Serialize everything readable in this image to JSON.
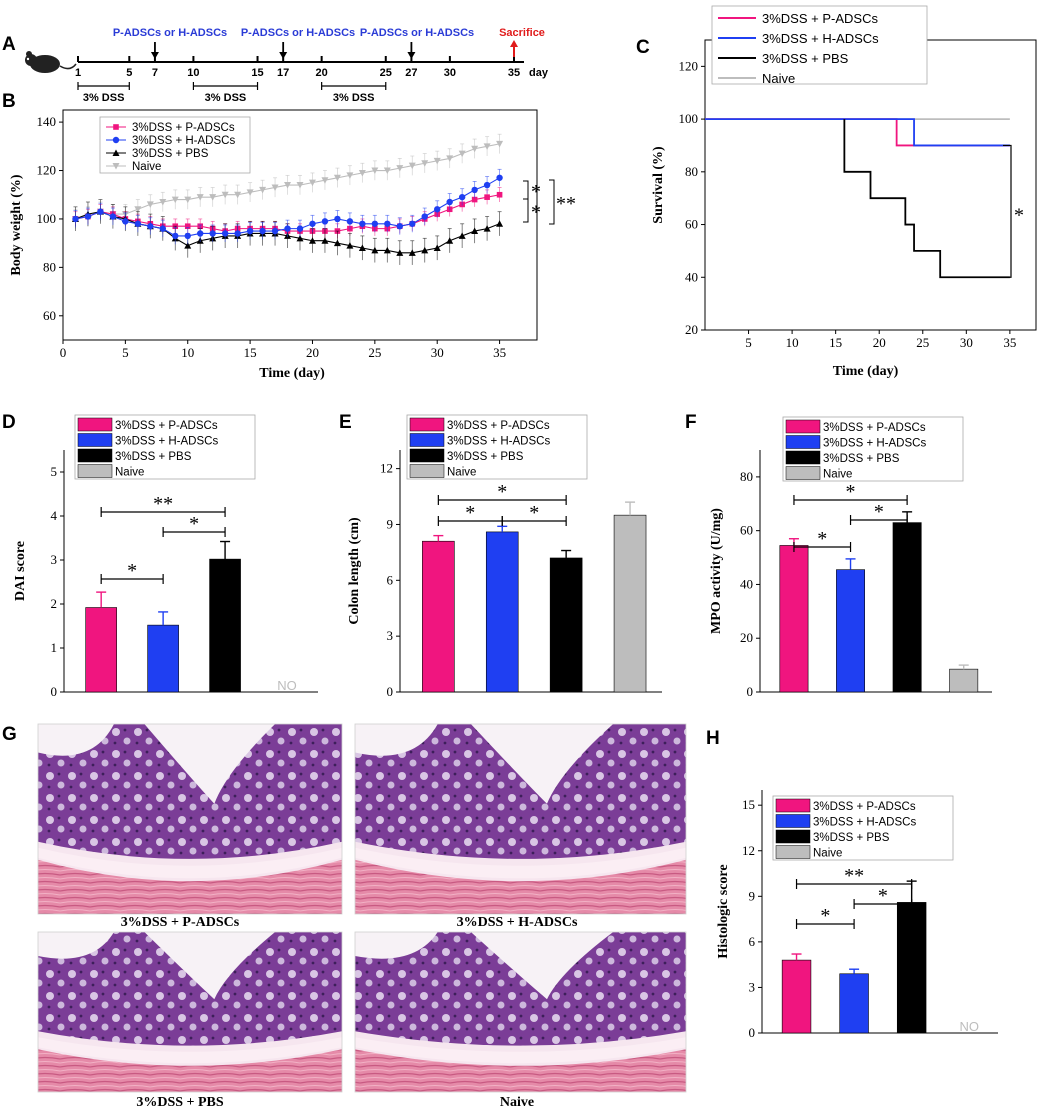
{
  "colors": {
    "pink": "#f0157f",
    "blue": "#1f3ff2",
    "black": "#000000",
    "gray": "#bdbdbd",
    "red": "#e01b1b",
    "text_blue": "#2a3bd6"
  },
  "panel_labels": {
    "A": "A",
    "B": "B",
    "C": "C",
    "D": "D",
    "E": "E",
    "F": "F",
    "G": "G",
    "H": "H"
  },
  "series_names": [
    "3%DSS + P-ADSCs",
    "3%DSS + H-ADSCs",
    "3%DSS + PBS",
    "Naive"
  ],
  "timeline": {
    "treatment_label": "P-ADSCs or H-ADSCs",
    "sacrifice_label": "Sacrifice",
    "dss_label": "3% DSS",
    "day_label": "day",
    "days": [
      "1",
      "5",
      "7",
      "10",
      "15",
      "17",
      "20",
      "25",
      "27",
      "30",
      "35"
    ]
  },
  "chart_data": [
    {
      "panel": "B",
      "type": "line",
      "title": "",
      "xlabel": "Time (day)",
      "ylabel": "Body weight (%)",
      "xlim": [
        0,
        38
      ],
      "ylim": [
        50,
        145
      ],
      "xticks": [
        "0",
        "5",
        "10",
        "15",
        "20",
        "25",
        "30",
        "35"
      ],
      "yticks": [
        "60",
        "80",
        "100",
        "120",
        "140"
      ],
      "x": [
        1,
        2,
        3,
        4,
        5,
        6,
        7,
        8,
        9,
        10,
        11,
        12,
        13,
        14,
        15,
        16,
        17,
        18,
        19,
        20,
        21,
        22,
        23,
        24,
        25,
        26,
        27,
        28,
        29,
        30,
        31,
        32,
        33,
        34,
        35
      ],
      "series": [
        {
          "name": "3%DSS + P-ADSCs",
          "values": [
            100,
            101,
            103,
            102,
            100,
            99,
            98,
            97,
            97,
            97,
            97,
            96,
            95,
            96,
            96,
            96,
            96,
            95,
            95,
            95,
            95,
            95,
            96,
            97,
            96,
            96,
            97,
            98,
            100,
            102,
            104,
            106,
            108,
            109,
            110
          ]
        },
        {
          "name": "3%DSS + H-ADSCs",
          "values": [
            100,
            101,
            103,
            101,
            99,
            98,
            97,
            96,
            93,
            93,
            94,
            94,
            94,
            94,
            95,
            95,
            95,
            96,
            96,
            98,
            99,
            100,
            99,
            98,
            98,
            98,
            97,
            98,
            101,
            104,
            107,
            109,
            112,
            114,
            117
          ]
        },
        {
          "name": "3%DSS + PBS",
          "values": [
            100,
            102,
            103,
            101,
            100,
            98,
            97,
            96,
            92,
            89,
            91,
            92,
            93,
            93,
            94,
            94,
            94,
            93,
            92,
            91,
            91,
            90,
            89,
            88,
            87,
            87,
            86,
            86,
            87,
            88,
            91,
            93,
            95,
            96,
            98
          ]
        },
        {
          "name": "Naive",
          "values": [
            100,
            101,
            103,
            102,
            102,
            104,
            106,
            107,
            108,
            108,
            109,
            109,
            110,
            110,
            111,
            112,
            113,
            114,
            114,
            115,
            116,
            117,
            118,
            119,
            120,
            120,
            121,
            122,
            123,
            124,
            125,
            127,
            129,
            130,
            131
          ]
        }
      ],
      "significance": [
        "*",
        "*",
        "**"
      ]
    },
    {
      "panel": "C",
      "type": "line",
      "title": "",
      "xlabel": "Time (day)",
      "ylabel": "Survival (%)",
      "xlim": [
        0,
        38
      ],
      "ylim": [
        20,
        130
      ],
      "xticks": [
        "5",
        "10",
        "15",
        "20",
        "25",
        "30",
        "35"
      ],
      "yticks": [
        "20",
        "40",
        "60",
        "80",
        "100",
        "120"
      ],
      "series": [
        {
          "name": "3%DSS + P-ADSCs",
          "points": [
            [
              0,
              100
            ],
            [
              22,
              100
            ],
            [
              22,
              90
            ],
            [
              35,
              90
            ]
          ]
        },
        {
          "name": "3%DSS + H-ADSCs",
          "points": [
            [
              0,
              100
            ],
            [
              24,
              100
            ],
            [
              24,
              90
            ],
            [
              35,
              90
            ]
          ]
        },
        {
          "name": "3%DSS + PBS",
          "points": [
            [
              16,
              100
            ],
            [
              16,
              80
            ],
            [
              19,
              80
            ],
            [
              19,
              70
            ],
            [
              23,
              70
            ],
            [
              23,
              60
            ],
            [
              24,
              60
            ],
            [
              24,
              50
            ],
            [
              27,
              50
            ],
            [
              27,
              40
            ],
            [
              35,
              40
            ]
          ]
        },
        {
          "name": "Naive",
          "points": [
            [
              0,
              100
            ],
            [
              35,
              100
            ]
          ]
        }
      ],
      "significance": [
        "*"
      ]
    },
    {
      "panel": "D",
      "type": "bar",
      "title": "",
      "xlabel": "",
      "ylabel": "DAI score",
      "ylim": [
        0,
        5.5
      ],
      "yticks": [
        "0",
        "1",
        "2",
        "3",
        "4",
        "5"
      ],
      "categories": [
        "3%DSS + P-ADSCs",
        "3%DSS + H-ADSCs",
        "3%DSS + PBS",
        "Naive"
      ],
      "values": [
        1.92,
        1.52,
        3.02,
        0
      ],
      "errors": [
        0.35,
        0.3,
        0.4,
        0
      ],
      "annotation": "NO",
      "significance": [
        {
          "label": "*",
          "from": 0,
          "to": 1
        },
        {
          "label": "*",
          "from": 1,
          "to": 2
        },
        {
          "label": "**",
          "from": 0,
          "to": 2
        }
      ]
    },
    {
      "panel": "E",
      "type": "bar",
      "title": "",
      "xlabel": "",
      "ylabel": "Colon length (cm)",
      "ylim": [
        0,
        13
      ],
      "yticks": [
        "0",
        "3",
        "6",
        "9",
        "12"
      ],
      "categories": [
        "3%DSS + P-ADSCs",
        "3%DSS + H-ADSCs",
        "3%DSS + PBS",
        "Naive"
      ],
      "values": [
        8.1,
        8.6,
        7.2,
        9.5
      ],
      "errors": [
        0.3,
        0.3,
        0.4,
        0.7
      ],
      "significance": [
        {
          "label": "*",
          "from": 0,
          "to": 1
        },
        {
          "label": "*",
          "from": 1,
          "to": 2
        },
        {
          "label": "*",
          "from": 0,
          "to": 2
        }
      ]
    },
    {
      "panel": "F",
      "type": "bar",
      "title": "",
      "xlabel": "",
      "ylabel": "MPO activity (U/mg)",
      "ylim": [
        0,
        90
      ],
      "yticks": [
        "0",
        "20",
        "40",
        "60",
        "80"
      ],
      "categories": [
        "3%DSS + P-ADSCs",
        "3%DSS + H-ADSCs",
        "3%DSS + PBS",
        "Naive"
      ],
      "values": [
        54.5,
        45.5,
        63,
        8.5
      ],
      "errors": [
        2.5,
        4,
        4,
        1.5
      ],
      "significance": [
        {
          "label": "*",
          "from": 0,
          "to": 1
        },
        {
          "label": "*",
          "from": 1,
          "to": 2
        },
        {
          "label": "*",
          "from": 0,
          "to": 2
        }
      ]
    },
    {
      "panel": "H",
      "type": "bar",
      "title": "",
      "xlabel": "",
      "ylabel": "Histologic score",
      "ylim": [
        0,
        16
      ],
      "yticks": [
        "0",
        "3",
        "6",
        "9",
        "12",
        "15"
      ],
      "categories": [
        "3%DSS + P-ADSCs",
        "3%DSS + H-ADSCs",
        "3%DSS + PBS",
        "Naive"
      ],
      "values": [
        4.8,
        3.9,
        8.6,
        0
      ],
      "errors": [
        0.4,
        0.3,
        1.4,
        0
      ],
      "annotation": "NO",
      "significance": [
        {
          "label": "*",
          "from": 0,
          "to": 1
        },
        {
          "label": "*",
          "from": 1,
          "to": 2
        },
        {
          "label": "**",
          "from": 0,
          "to": 2
        }
      ]
    }
  ],
  "histology": {
    "captions": [
      "3%DSS + P-ADSCs",
      "3%DSS + H-ADSCs",
      "3%DSS + PBS",
      "Naive"
    ]
  }
}
